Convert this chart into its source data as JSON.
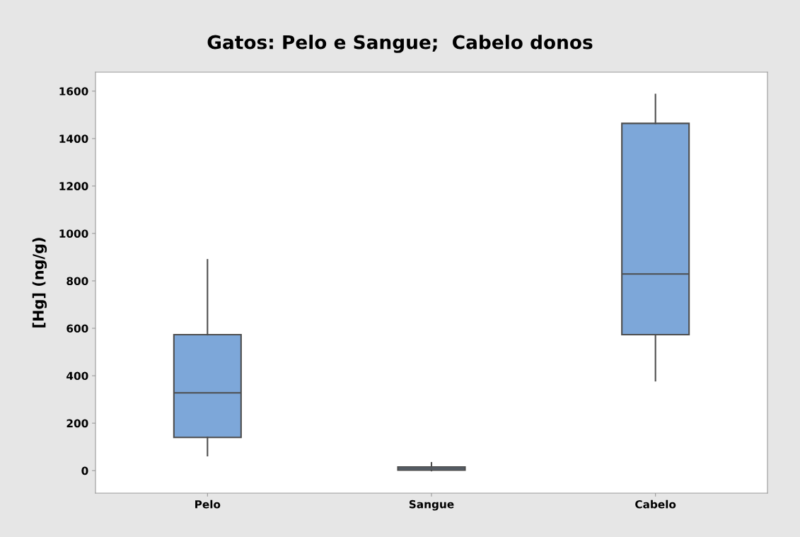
{
  "chart_data": {
    "type": "box",
    "title": "Gatos: Pelo e Sangue;  Cabelo donos",
    "ylabel": "[Hg] (ng/g)",
    "categories": [
      "Pelo",
      "Sangue",
      "Cabelo"
    ],
    "boxes": [
      {
        "low": 63,
        "q1": 140,
        "median": 328,
        "q3": 573,
        "high": 889
      },
      {
        "low": 0,
        "q1": 2,
        "median": 8,
        "q3": 15,
        "high": 33
      },
      {
        "low": 379,
        "q1": 573,
        "median": 829,
        "q3": 1464,
        "high": 1586
      }
    ],
    "color": "#7da7d9",
    "ylim": [
      -95,
      1680
    ],
    "yticks": [
      0,
      200,
      400,
      600,
      800,
      1000,
      1200,
      1400,
      1600
    ],
    "grid": false
  }
}
